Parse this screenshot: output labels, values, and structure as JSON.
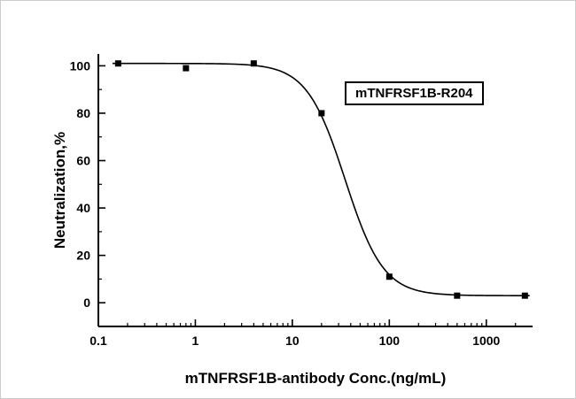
{
  "chart_data": {
    "type": "scatter",
    "title": "",
    "xlabel": "mTNFRSF1B-antibody Conc.(ng/mL)",
    "ylabel": "Neutralization,%",
    "annotation": "mTNFRSF1B-R204",
    "x_scale": "log",
    "grid": false,
    "background": "#ffffff",
    "axis_color": "#000000",
    "xlim": [
      0.1,
      3000
    ],
    "ylim": [
      -10,
      105
    ],
    "xticks": [
      0.1,
      1,
      10,
      100,
      1000
    ],
    "xtick_labels": [
      "0.1",
      "1",
      "10",
      "100",
      "1000"
    ],
    "yticks": [
      0,
      20,
      40,
      60,
      80,
      100
    ],
    "ytick_labels": [
      "0",
      "20",
      "40",
      "60",
      "80",
      "100"
    ],
    "yminor_ticks": [
      10,
      30,
      50,
      70,
      90
    ],
    "series": [
      {
        "name": "mTNFRSF1B-R204",
        "marker": "square",
        "marker_size": 7,
        "color": "#000000",
        "points": [
          {
            "x": 0.16,
            "y": 101
          },
          {
            "x": 0.8,
            "y": 99
          },
          {
            "x": 4,
            "y": 101
          },
          {
            "x": 20,
            "y": 80
          },
          {
            "x": 100,
            "y": 11
          },
          {
            "x": 500,
            "y": 3
          },
          {
            "x": 2500,
            "y": 3
          }
        ]
      }
    ],
    "fit_curve": {
      "model": "4PL-sigmoid",
      "top": 101,
      "bottom": 3,
      "ic50": 35,
      "hill": 2.2,
      "x_start": 0.14,
      "x_end": 2800,
      "color": "#000000",
      "line_width": 1.6
    }
  }
}
